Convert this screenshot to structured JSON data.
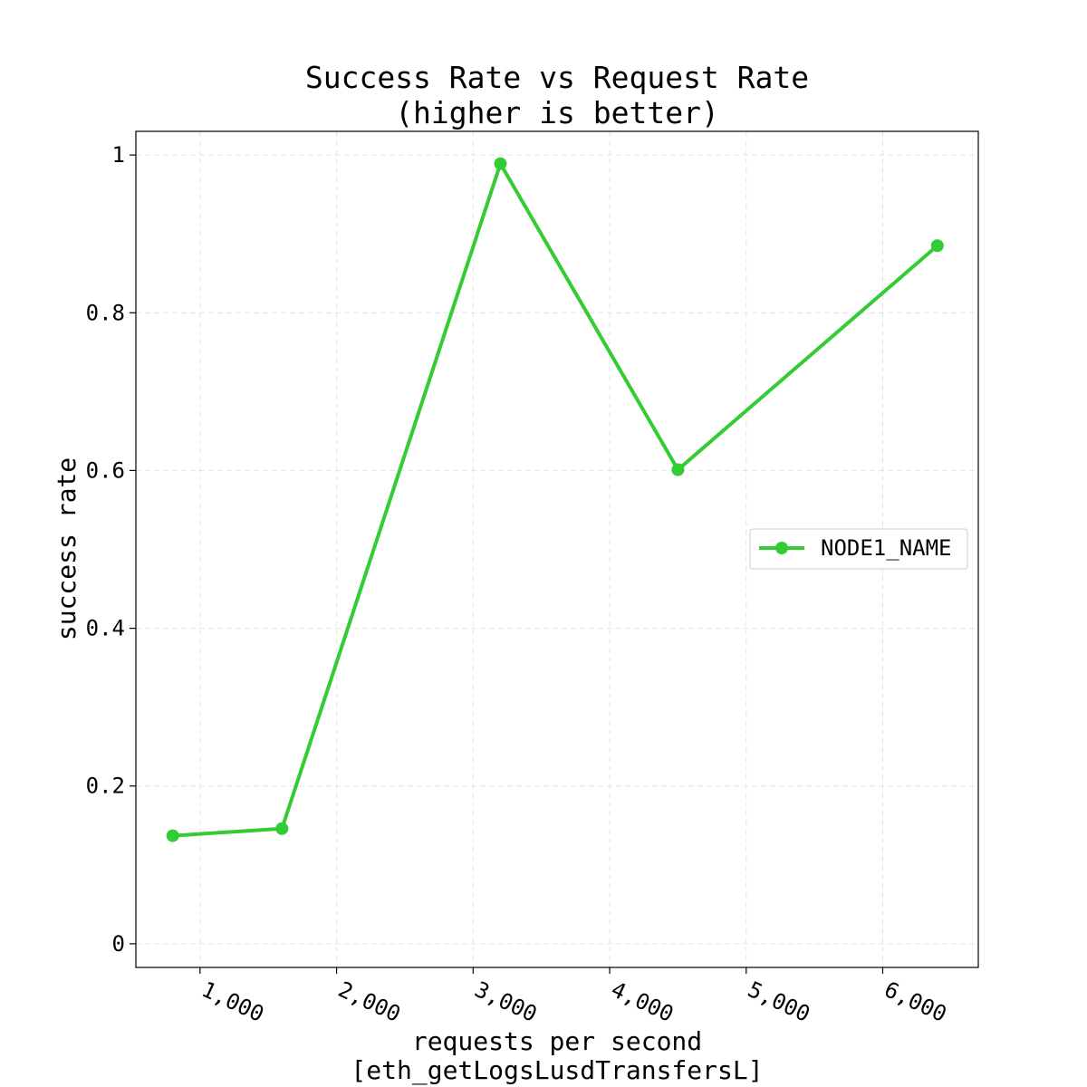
{
  "chart_data": {
    "type": "line",
    "title_line1": "Success Rate vs Request Rate",
    "title_line2": "(higher is better)",
    "xlabel_line1": "requests per second",
    "xlabel_line2": "[eth_getLogsLusdTransfersL]",
    "ylabel": "success rate",
    "xlim": [
      530,
      6700
    ],
    "ylim": [
      -0.03,
      1.03
    ],
    "x_ticks": [
      1000,
      2000,
      3000,
      4000,
      5000,
      6000
    ],
    "x_tick_labels": [
      "1,000",
      "2,000",
      "3,000",
      "4,000",
      "5,000",
      "6,000"
    ],
    "y_ticks": [
      0,
      0.2,
      0.4,
      0.6,
      0.8,
      1
    ],
    "y_tick_labels": [
      "0",
      "0.2",
      "0.4",
      "0.6",
      "0.8",
      "1"
    ],
    "grid": true,
    "legend_position": "right",
    "series": [
      {
        "name": "NODE1_NAME",
        "color": "#33cc33",
        "x": [
          800,
          1600,
          3200,
          4500,
          6400
        ],
        "y": [
          0.137,
          0.146,
          0.989,
          0.601,
          0.885
        ]
      }
    ]
  }
}
